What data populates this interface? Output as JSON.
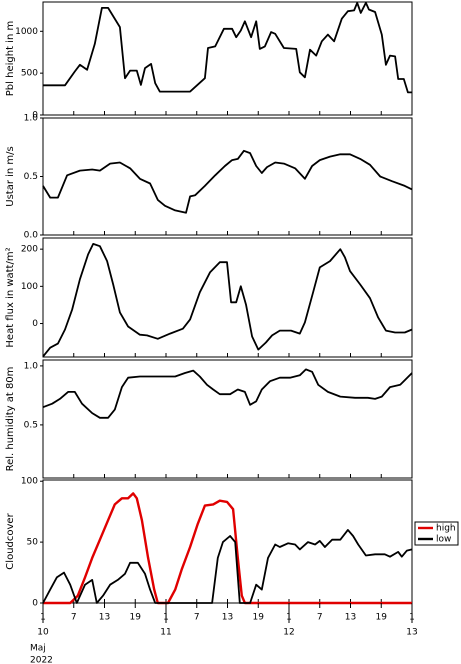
{
  "chart_data": [
    {
      "type": "line",
      "ylabel": "Pbl height in m",
      "color": "#000000",
      "x": [
        0,
        4.3,
        6.2,
        7.2,
        8.6,
        10.1,
        11.5,
        12.7,
        15.0,
        16.0,
        17.0,
        18.3,
        19.1,
        19.9,
        21.1,
        21.9,
        22.8,
        28.7,
        31.6,
        32.2,
        33.6,
        35.3,
        36.9,
        37.7,
        38.6,
        39.4,
        40.6,
        41.6,
        42.3,
        43.3,
        44.5,
        45.3,
        47.0,
        49.4,
        50.1,
        51.1,
        52.1,
        53.3,
        54.4,
        55.6,
        56.8,
        58.3,
        59.5,
        60.7,
        61.3,
        62.0,
        63.0,
        63.6,
        64.8,
        66.1,
        66.9,
        67.7,
        68.7,
        69.3,
        70.4,
        71.2,
        72.0
      ],
      "values": [
        355,
        355,
        520,
        600,
        540,
        850,
        1280,
        1280,
        1050,
        440,
        530,
        530,
        360,
        560,
        610,
        380,
        280,
        280,
        440,
        800,
        820,
        1030,
        1030,
        930,
        1010,
        1120,
        930,
        1120,
        790,
        820,
        990,
        970,
        800,
        790,
        510,
        450,
        780,
        710,
        880,
        960,
        880,
        1150,
        1240,
        1250,
        1340,
        1220,
        1340,
        1260,
        1230,
        960,
        600,
        710,
        700,
        430,
        430,
        270,
        270
      ],
      "xlim": [
        0,
        72
      ],
      "ylim": [
        0,
        1350
      ],
      "yticks": [
        0,
        500,
        1000
      ]
    },
    {
      "type": "line",
      "ylabel": "Ustar in m/s",
      "color": "#000000",
      "x": [
        0,
        1.4,
        2.9,
        4.7,
        7.2,
        9.6,
        11.1,
        13.1,
        15.0,
        17.0,
        18.9,
        20.9,
        22.4,
        23.8,
        25.8,
        27.9,
        28.7,
        29.7,
        31.6,
        33.6,
        35.5,
        36.9,
        38.0,
        39.2,
        40.4,
        41.6,
        42.7,
        43.7,
        45.3,
        47.0,
        49.2,
        51.1,
        52.5,
        54.0,
        56.0,
        58.0,
        59.9,
        61.9,
        63.8,
        65.8,
        68.1,
        70.6,
        72.0
      ],
      "values": [
        0.42,
        0.32,
        0.32,
        0.51,
        0.55,
        0.56,
        0.55,
        0.61,
        0.62,
        0.57,
        0.48,
        0.44,
        0.3,
        0.25,
        0.21,
        0.19,
        0.33,
        0.34,
        0.42,
        0.51,
        0.59,
        0.64,
        0.65,
        0.72,
        0.7,
        0.59,
        0.53,
        0.58,
        0.62,
        0.61,
        0.57,
        0.48,
        0.59,
        0.64,
        0.67,
        0.69,
        0.69,
        0.65,
        0.6,
        0.5,
        0.46,
        0.42,
        0.39
      ],
      "xlim": [
        0,
        72
      ],
      "ylim": [
        0,
        1.0
      ],
      "yticks": [
        {
          "value": 0,
          "label": "0.0"
        },
        0.5,
        {
          "value": 1,
          "label": "1.0"
        }
      ]
    },
    {
      "type": "line",
      "ylabel": "Heat flux in watt/m²",
      "color": "#000000",
      "x": [
        0,
        1.4,
        2.9,
        4.3,
        5.7,
        7.2,
        8.8,
        9.8,
        11.1,
        12.5,
        13.7,
        15.0,
        16.6,
        18.9,
        20.3,
        22.4,
        24.8,
        27.3,
        28.7,
        30.6,
        32.6,
        34.5,
        35.9,
        36.7,
        37.7,
        38.6,
        39.6,
        40.8,
        42.0,
        43.5,
        44.7,
        46.2,
        48.4,
        50.1,
        51.1,
        52.7,
        54.0,
        56.0,
        58.0,
        58.9,
        59.9,
        61.9,
        63.8,
        65.4,
        66.9,
        68.7,
        70.6,
        72.0
      ],
      "values": [
        -89,
        -65,
        -54,
        -16,
        38,
        119,
        186,
        214,
        208,
        168,
        105,
        30,
        -8,
        -30,
        -32,
        -41,
        -27,
        -14,
        11,
        84,
        138,
        165,
        165,
        57,
        57,
        100,
        51,
        -35,
        -70,
        -51,
        -32,
        -19,
        -19,
        -27,
        3,
        84,
        151,
        168,
        200,
        178,
        141,
        105,
        68,
        16,
        -19,
        -24,
        -24,
        -16
      ],
      "xlim": [
        0,
        72
      ],
      "ylim": [
        -90,
        230
      ],
      "yticks": [
        0,
        100,
        200
      ]
    },
    {
      "type": "line",
      "ylabel": "Rel. humidity at 80m",
      "color": "#000000",
      "x": [
        0,
        1.8,
        3.3,
        4.9,
        6.2,
        7.6,
        9.6,
        11.1,
        12.7,
        14.0,
        15.4,
        16.6,
        18.9,
        22.8,
        25.8,
        27.7,
        29.3,
        30.6,
        32.0,
        33.2,
        34.5,
        36.5,
        38.0,
        39.4,
        40.4,
        41.6,
        42.7,
        44.3,
        46.2,
        48.2,
        50.1,
        51.3,
        52.5,
        53.7,
        55.6,
        58.0,
        60.9,
        63.4,
        64.8,
        66.1,
        67.7,
        69.7,
        72.0
      ],
      "values": [
        0.65,
        0.68,
        0.72,
        0.78,
        0.78,
        0.68,
        0.6,
        0.56,
        0.56,
        0.63,
        0.82,
        0.9,
        0.91,
        0.91,
        0.91,
        0.94,
        0.96,
        0.91,
        0.84,
        0.8,
        0.76,
        0.76,
        0.8,
        0.78,
        0.67,
        0.7,
        0.8,
        0.87,
        0.9,
        0.9,
        0.92,
        0.97,
        0.95,
        0.84,
        0.78,
        0.74,
        0.73,
        0.73,
        0.72,
        0.74,
        0.82,
        0.84,
        0.94
      ],
      "xlim": [
        0,
        72
      ],
      "ylim": [
        0.05,
        1.05
      ],
      "yticks": [
        0.5,
        {
          "value": 1,
          "label": "1.0"
        }
      ]
    },
    {
      "type": "line",
      "ylabel": "Cloudcover",
      "legend": "right",
      "series": [
        {
          "name": "high",
          "color": "#e00000",
          "x": [
            0,
            5.3,
            6.8,
            8.2,
            9.6,
            11.1,
            12.7,
            14.0,
            15.4,
            16.6,
            17.6,
            18.3,
            19.3,
            20.5,
            21.7,
            22.4,
            24.4,
            25.8,
            27.1,
            28.7,
            30.2,
            31.6,
            33.2,
            34.5,
            35.9,
            37.1,
            38.0,
            38.8,
            39.4,
            72.0
          ],
          "values": [
            0,
            0,
            6,
            21,
            37,
            52,
            68,
            81,
            86,
            86,
            90,
            86,
            68,
            37,
            11,
            0,
            0,
            11,
            28,
            46,
            65,
            80,
            81,
            84,
            83,
            77,
            37,
            6,
            0,
            0
          ]
        },
        {
          "name": "low",
          "color": "#000000",
          "x": [
            0,
            1.4,
            2.7,
            4.1,
            5.3,
            6.6,
            8.2,
            9.6,
            10.5,
            11.7,
            13.1,
            14.6,
            16.0,
            17.0,
            18.5,
            19.9,
            20.9,
            21.9,
            31.6,
            33.0,
            34.1,
            35.1,
            36.5,
            37.5,
            38.4,
            40.4,
            41.6,
            42.7,
            43.9,
            45.3,
            46.2,
            47.8,
            49.2,
            50.1,
            51.7,
            53.1,
            54.0,
            55.0,
            56.4,
            58.0,
            59.5,
            60.5,
            61.5,
            63.0,
            64.8,
            66.7,
            67.7,
            69.3,
            70.0,
            71.0,
            72.0
          ],
          "values": [
            0,
            11,
            21,
            25,
            15,
            0,
            15,
            19,
            0,
            6,
            15,
            19,
            24,
            33,
            33,
            24,
            11,
            0,
            0,
            0,
            37,
            50,
            55,
            50,
            0,
            0,
            15,
            11,
            37,
            48,
            46,
            49,
            48,
            44,
            50,
            48,
            51,
            46,
            52,
            52,
            60,
            55,
            48,
            39,
            40,
            40,
            38,
            42,
            38,
            43,
            44
          ]
        }
      ],
      "xlim": [
        0,
        72
      ],
      "ylim": [
        0,
        101
      ],
      "yticks": [
        0,
        50,
        100
      ],
      "xticks": [
        {
          "value": 0,
          "label": "1"
        },
        {
          "value": 6,
          "label": "7"
        },
        {
          "value": 12,
          "label": "13"
        },
        {
          "value": 18,
          "label": "19"
        },
        {
          "value": 24,
          "label": "1"
        },
        {
          "value": 30,
          "label": "7"
        },
        {
          "value": 36,
          "label": "13"
        },
        {
          "value": 42,
          "label": "19"
        },
        {
          "value": 48,
          "label": "1"
        },
        {
          "value": 54,
          "label": "7"
        },
        {
          "value": 60,
          "label": "13"
        },
        {
          "value": 66,
          "label": "19"
        },
        {
          "value": 72,
          "label": "1"
        }
      ],
      "day_labels": [
        {
          "value": 0,
          "label": "10"
        },
        {
          "value": 24,
          "label": "11"
        },
        {
          "value": 48,
          "label": "12"
        },
        {
          "value": 72,
          "label": "13"
        }
      ],
      "month_label": "Maj",
      "year_label": "2022"
    }
  ]
}
